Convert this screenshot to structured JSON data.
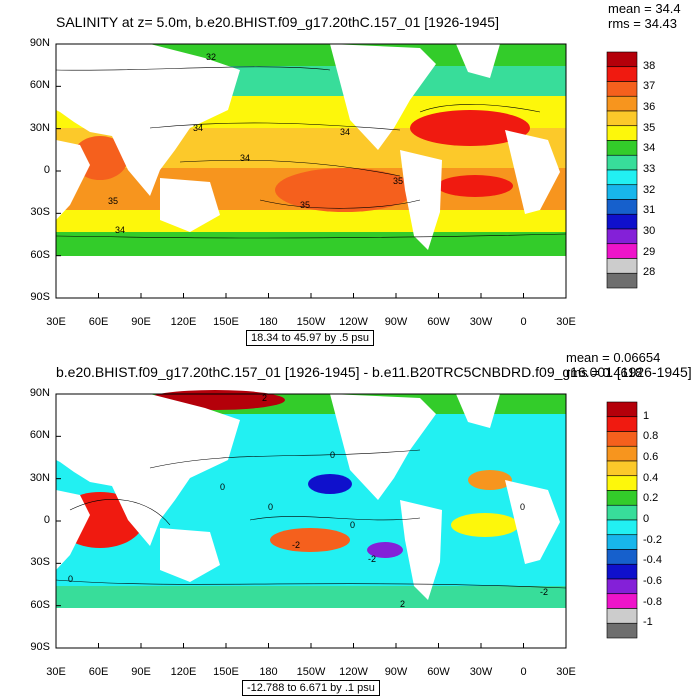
{
  "maps": [
    {
      "title": "SALINITY at z=   5.0m, b.e20.BHIST.f09_g17.20thC.157_01 [1926-1945]",
      "stats": {
        "mean": "mean = 34.4",
        "rms": "rms = 34.43"
      },
      "range_note": "18.34 to 45.97 by .5 psu",
      "lat_ticks": [
        "90N",
        "60N",
        "30N",
        "0",
        "30S",
        "60S",
        "90S"
      ],
      "lon_ticks": [
        "30E",
        "60E",
        "90E",
        "120E",
        "150E",
        "180",
        "150W",
        "120W",
        "90W",
        "60W",
        "30W",
        "0",
        "30E"
      ],
      "contour_labels": [
        "32",
        "34",
        "34",
        "34",
        "35",
        "35",
        "35",
        "34"
      ],
      "colorbar": {
        "labels": [
          "38",
          "37",
          "36",
          "35",
          "34",
          "33",
          "32",
          "31",
          "30",
          "29",
          "28"
        ],
        "colors": [
          "#b4000a",
          "#f01a10",
          "#f5601d",
          "#f7951e",
          "#fcc92a",
          "#fdf70b",
          "#33cc2a",
          "#38dd9a",
          "#22f0f2",
          "#18b6ec",
          "#1660cc",
          "#0f10cc",
          "#8420d8",
          "#ee14ca",
          "#cccccc",
          "#6e6e6e"
        ]
      }
    },
    {
      "title": "b.e20.BHIST.f09_g17.20thC.157_01 [1926-1945] - b.e11.B20TRC5CNBDRD.f09_g16.001 [1926-1945]",
      "stats": {
        "mean": "mean = 0.06654",
        "rms": "rms = 0.4618"
      },
      "range_note": "-12.788 to 6.671 by .1 psu",
      "lat_ticks": [
        "90N",
        "60N",
        "30N",
        "0",
        "30S",
        "60S",
        "90S"
      ],
      "lon_ticks": [
        "30E",
        "60E",
        "90E",
        "120E",
        "150E",
        "180",
        "150W",
        "120W",
        "90W",
        "60W",
        "30W",
        "0",
        "30E"
      ],
      "contour_labels": [
        "2",
        "0",
        "0",
        "0",
        "0",
        "-2",
        "-2",
        "0",
        "0",
        "2",
        "-2"
      ],
      "colorbar": {
        "labels": [
          "1",
          "0.8",
          "0.6",
          "0.4",
          "0.2",
          "0",
          "-0.2",
          "-0.4",
          "-0.6",
          "-0.8",
          "-1"
        ],
        "colors": [
          "#b4000a",
          "#f01a10",
          "#f5601d",
          "#f7951e",
          "#fcc92a",
          "#fdf70b",
          "#33cc2a",
          "#38dd9a",
          "#22f0f2",
          "#18b6ec",
          "#1660cc",
          "#0f10cc",
          "#8420d8",
          "#ee14ca",
          "#cccccc",
          "#6e6e6e"
        ]
      }
    }
  ]
}
